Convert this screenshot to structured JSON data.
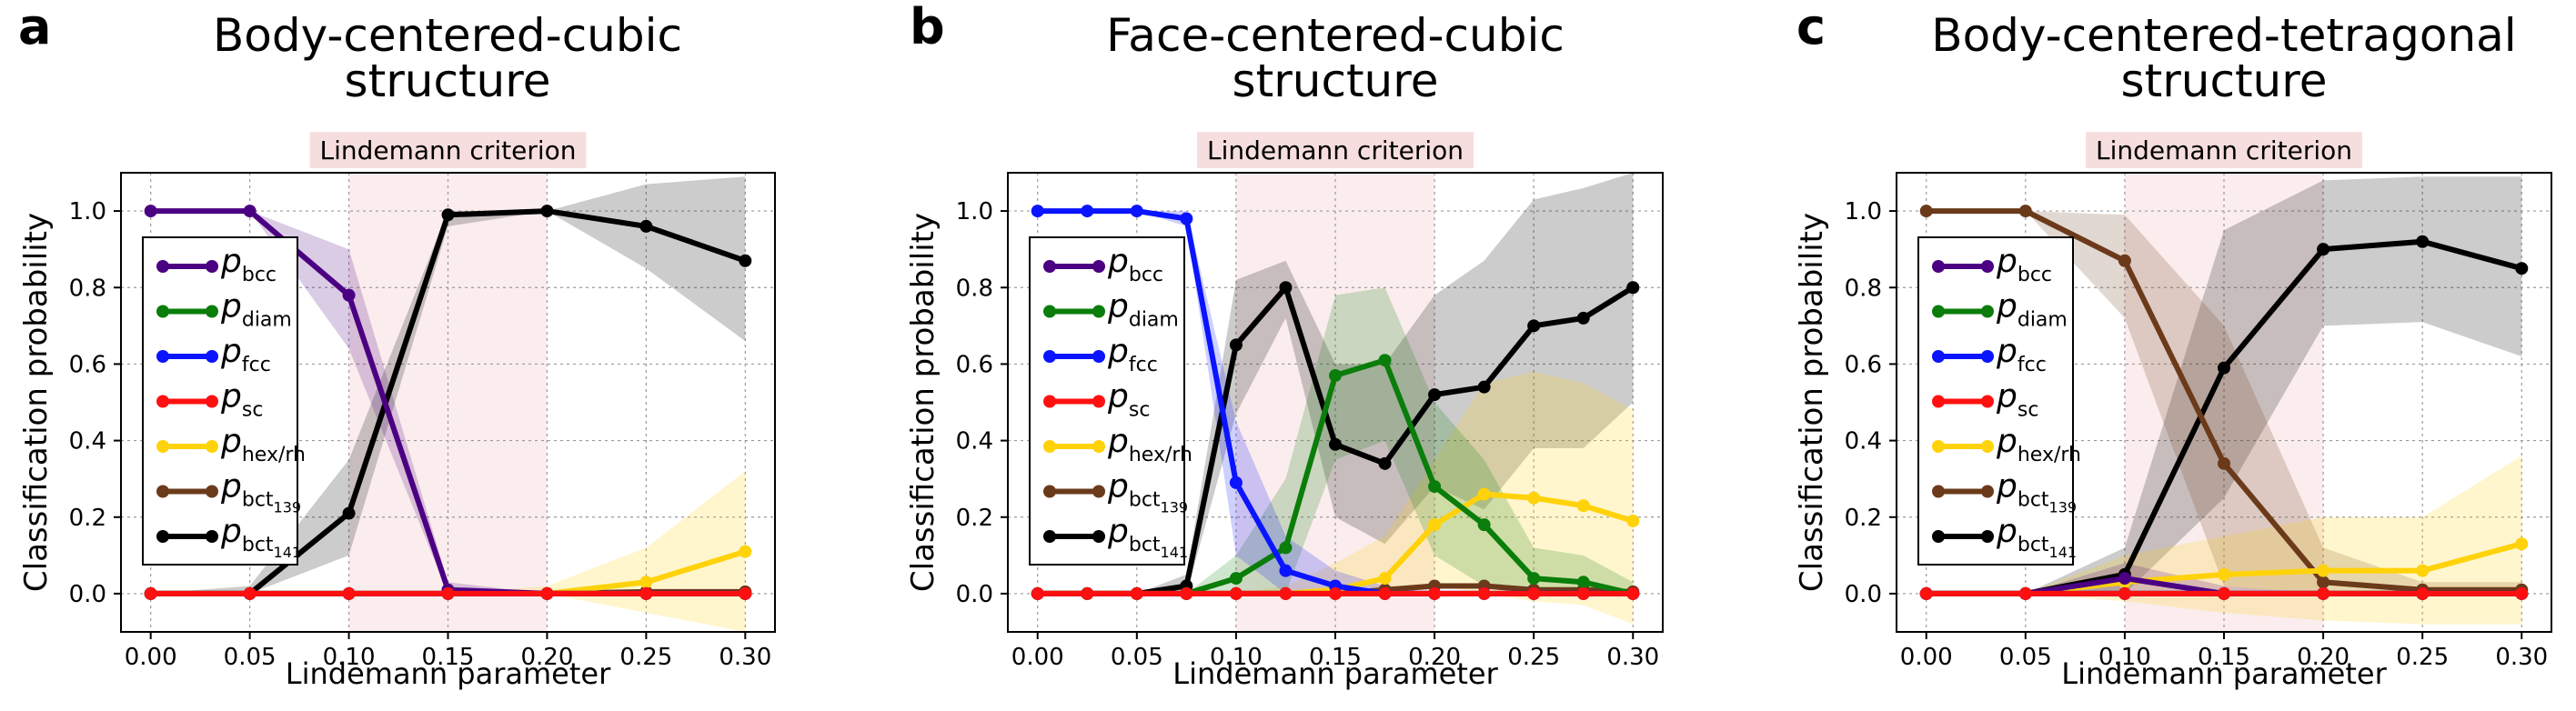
{
  "chart_data": [
    {
      "type": "line",
      "panel_letter": "a",
      "title_line1": "Body-centered-cubic",
      "title_line2": "structure",
      "band_label": "Lindemann criterion",
      "band_range": [
        0.1,
        0.2
      ],
      "xlabel": "Lindemann parameter",
      "ylabel": "Classification probability",
      "xlim": [
        -0.015,
        0.315
      ],
      "ylim": [
        -0.1,
        1.1
      ],
      "xticks": [
        "0.00",
        "0.05",
        "0.10",
        "0.15",
        "0.20",
        "0.25",
        "0.30"
      ],
      "yticks": [
        "0.0",
        "0.2",
        "0.4",
        "0.6",
        "0.8",
        "1.0"
      ],
      "x": [
        0.0,
        0.05,
        0.1,
        0.15,
        0.2,
        0.25,
        0.3
      ],
      "series": [
        {
          "key": "bcc",
          "values": [
            1.0,
            1.0,
            0.78,
            0.01,
            0.0,
            0.0,
            0.0
          ],
          "upper": [
            1.0,
            1.0,
            0.9,
            0.03,
            0.0,
            0.0,
            0.0
          ],
          "lower": [
            1.0,
            1.0,
            0.64,
            0.0,
            0.0,
            0.0,
            0.0
          ]
        },
        {
          "key": "diam",
          "values": [
            0,
            0,
            0,
            0,
            0,
            0,
            0
          ]
        },
        {
          "key": "fcc",
          "values": [
            0,
            0,
            0,
            0,
            0,
            0,
            0
          ]
        },
        {
          "key": "sc",
          "values": [
            0,
            0,
            0,
            0,
            0,
            0,
            0
          ]
        },
        {
          "key": "hex",
          "values": [
            0,
            0,
            0,
            0,
            0,
            0.03,
            0.11
          ],
          "upper": [
            0,
            0,
            0,
            0,
            0.02,
            0.12,
            0.32
          ],
          "lower": [
            0,
            0,
            0,
            0,
            0,
            -0.05,
            -0.1
          ]
        },
        {
          "key": "bct139",
          "values": [
            0,
            0,
            0,
            0,
            0,
            0.005,
            0.005
          ]
        },
        {
          "key": "bct141",
          "values": [
            0,
            0,
            0.21,
            0.99,
            1.0,
            0.96,
            0.87
          ],
          "upper": [
            0,
            0.02,
            0.35,
            1.0,
            1.0,
            1.07,
            1.09
          ],
          "lower": [
            0,
            0,
            0.1,
            0.96,
            1.0,
            0.85,
            0.66
          ]
        }
      ]
    },
    {
      "type": "line",
      "panel_letter": "b",
      "title_line1": "Face-centered-cubic",
      "title_line2": "structure",
      "band_label": "Lindemann criterion",
      "band_range": [
        0.1,
        0.2
      ],
      "xlabel": "Lindemann parameter",
      "ylabel": "Classification probability",
      "xlim": [
        -0.015,
        0.315
      ],
      "ylim": [
        -0.1,
        1.1
      ],
      "xticks": [
        "0.00",
        "0.05",
        "0.10",
        "0.15",
        "0.20",
        "0.25",
        "0.30"
      ],
      "yticks": [
        "0.0",
        "0.2",
        "0.4",
        "0.6",
        "0.8",
        "1.0"
      ],
      "x": [
        0.0,
        0.025,
        0.05,
        0.075,
        0.1,
        0.125,
        0.15,
        0.175,
        0.2,
        0.225,
        0.25,
        0.275,
        0.3
      ],
      "series": [
        {
          "key": "bcc",
          "values": [
            0,
            0,
            0,
            0,
            0,
            0,
            0,
            0,
            0,
            0,
            0,
            0,
            0
          ]
        },
        {
          "key": "diam",
          "values": [
            0,
            0,
            0,
            0,
            0.04,
            0.12,
            0.57,
            0.61,
            0.28,
            0.18,
            0.04,
            0.03,
            0.0
          ],
          "upper": [
            0,
            0,
            0,
            0,
            0.1,
            0.3,
            0.78,
            0.8,
            0.5,
            0.35,
            0.12,
            0.1,
            0.03
          ],
          "lower": [
            0,
            0,
            0,
            0,
            0,
            0,
            0.35,
            0.4,
            0.1,
            0.02,
            0,
            0,
            0
          ]
        },
        {
          "key": "fcc",
          "values": [
            1.0,
            1.0,
            1.0,
            0.98,
            0.29,
            0.06,
            0.02,
            0.0,
            0,
            0,
            0,
            0,
            0
          ],
          "upper": [
            1.0,
            1.0,
            1.0,
            1.0,
            0.45,
            0.15,
            0.06,
            0.02,
            0,
            0,
            0,
            0,
            0
          ],
          "lower": [
            1.0,
            1.0,
            1.0,
            0.96,
            0.1,
            0.0,
            0,
            0,
            0,
            0,
            0,
            0,
            0
          ]
        },
        {
          "key": "sc",
          "values": [
            0,
            0,
            0,
            0,
            0,
            0,
            0,
            0,
            0,
            0,
            0,
            0,
            0
          ]
        },
        {
          "key": "hex",
          "values": [
            0,
            0,
            0,
            0,
            0,
            0,
            0.01,
            0.04,
            0.18,
            0.26,
            0.25,
            0.23,
            0.19
          ],
          "upper": [
            0,
            0,
            0,
            0,
            0,
            0.02,
            0.08,
            0.15,
            0.35,
            0.55,
            0.58,
            0.55,
            0.48
          ],
          "lower": [
            0,
            0,
            0,
            0,
            0,
            0,
            0,
            0,
            0.02,
            0.0,
            -0.02,
            -0.03,
            -0.08
          ]
        },
        {
          "key": "bct139",
          "values": [
            0,
            0,
            0,
            0,
            0,
            0,
            0,
            0.01,
            0.02,
            0.02,
            0.01,
            0.01,
            0.005
          ]
        },
        {
          "key": "bct141",
          "values": [
            0,
            0,
            0,
            0.02,
            0.65,
            0.8,
            0.39,
            0.34,
            0.52,
            0.54,
            0.7,
            0.72,
            0.8
          ],
          "upper": [
            0,
            0,
            0,
            0.05,
            0.82,
            0.87,
            0.6,
            0.6,
            0.78,
            0.87,
            1.03,
            1.06,
            1.1
          ],
          "lower": [
            0,
            0,
            0,
            0,
            0.47,
            0.72,
            0.2,
            0.13,
            0.28,
            0.22,
            0.38,
            0.38,
            0.5
          ]
        }
      ]
    },
    {
      "type": "line",
      "panel_letter": "c",
      "title_line1": "Body-centered-tetragonal",
      "title_line2": "structure",
      "band_label": "Lindemann criterion",
      "band_range": [
        0.1,
        0.2
      ],
      "xlabel": "Lindemann parameter",
      "ylabel": "Classification probability",
      "xlim": [
        -0.015,
        0.315
      ],
      "ylim": [
        -0.1,
        1.1
      ],
      "xticks": [
        "0.00",
        "0.05",
        "0.10",
        "0.15",
        "0.20",
        "0.25",
        "0.30"
      ],
      "yticks": [
        "0.0",
        "0.2",
        "0.4",
        "0.6",
        "0.8",
        "1.0"
      ],
      "x": [
        0.0,
        0.05,
        0.1,
        0.15,
        0.2,
        0.25,
        0.3
      ],
      "series": [
        {
          "key": "bcc",
          "values": [
            0,
            0,
            0.04,
            0.0,
            0,
            0,
            0
          ],
          "upper": [
            0,
            0,
            0.08,
            0.02,
            0,
            0,
            0
          ],
          "lower": [
            0,
            0,
            0,
            0,
            0,
            0,
            0
          ]
        },
        {
          "key": "diam",
          "values": [
            0,
            0,
            0,
            0,
            0,
            0,
            0
          ]
        },
        {
          "key": "fcc",
          "values": [
            0,
            0,
            0,
            0,
            0,
            0,
            0
          ]
        },
        {
          "key": "sc",
          "values": [
            0,
            0,
            0,
            0,
            0,
            0,
            0
          ]
        },
        {
          "key": "hex",
          "values": [
            0,
            0,
            0.03,
            0.05,
            0.06,
            0.06,
            0.13
          ],
          "upper": [
            0,
            0,
            0.1,
            0.15,
            0.2,
            0.2,
            0.36
          ],
          "lower": [
            0,
            0,
            -0.02,
            -0.05,
            -0.07,
            -0.08,
            -0.08
          ]
        },
        {
          "key": "bct139",
          "values": [
            1.0,
            1.0,
            0.87,
            0.34,
            0.03,
            0.01,
            0.01
          ],
          "upper": [
            1.0,
            1.0,
            0.99,
            0.7,
            0.12,
            0.03,
            0.03
          ],
          "lower": [
            1.0,
            1.0,
            0.72,
            0.02,
            0.0,
            0,
            0
          ]
        },
        {
          "key": "bct141",
          "values": [
            0,
            0,
            0.05,
            0.59,
            0.9,
            0.92,
            0.85
          ],
          "upper": [
            0,
            0,
            0.12,
            0.95,
            1.08,
            1.09,
            1.09
          ],
          "lower": [
            0,
            0,
            0,
            0.25,
            0.7,
            0.71,
            0.62
          ]
        }
      ]
    }
  ],
  "legend": [
    {
      "key": "bcc",
      "p": "p",
      "sub": "bcc",
      "color": "#4b0082"
    },
    {
      "key": "diam",
      "p": "p",
      "sub": "diam",
      "color": "#0a7d0a"
    },
    {
      "key": "fcc",
      "p": "p",
      "sub": "fcc",
      "color": "#0a14ff"
    },
    {
      "key": "sc",
      "p": "p",
      "sub": "sc",
      "color": "#ff1010"
    },
    {
      "key": "hex",
      "p": "p",
      "sub": "hex/rh",
      "color": "#ffd20a"
    },
    {
      "key": "bct139",
      "p": "p",
      "sub": "bct",
      "subsub": "139",
      "color": "#6b3a1a"
    },
    {
      "key": "bct141",
      "p": "p",
      "sub": "bct",
      "subsub": "141",
      "color": "#000000"
    }
  ],
  "band_colors": {
    "fill": "#f7dede",
    "label_bg": "#f7dede"
  }
}
